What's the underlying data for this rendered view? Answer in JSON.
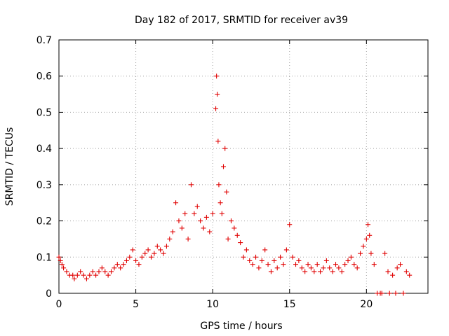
{
  "chart_data": {
    "type": "scatter",
    "title": "Day 182 of 2017, SRMTID for receiver av39",
    "xlabel": "GPS time / hours",
    "ylabel": "SRMTID / TECUs",
    "xlim": [
      0,
      24
    ],
    "ylim": [
      0,
      0.7
    ],
    "grid": true,
    "marker": "+",
    "marker_color": "#e00000",
    "x_ticks": [
      0,
      5,
      10,
      15,
      20
    ],
    "x_tick_labels": [
      "0",
      "5",
      "10",
      "15",
      "20"
    ],
    "y_ticks": [
      0,
      0.1,
      0.2,
      0.3,
      0.4,
      0.5,
      0.6,
      0.7
    ],
    "y_tick_labels": [
      "0",
      "0.1",
      "0.2",
      "0.3",
      "0.4",
      "0.5",
      "0.6",
      "0.7"
    ],
    "series": [
      {
        "name": "SRMTID",
        "x": [
          0.0,
          0.1,
          0.2,
          0.3,
          0.5,
          0.7,
          0.9,
          1.0,
          1.2,
          1.4,
          1.6,
          1.8,
          2.0,
          2.2,
          2.4,
          2.6,
          2.8,
          3.0,
          3.2,
          3.4,
          3.6,
          3.8,
          4.0,
          4.2,
          4.4,
          4.6,
          4.8,
          5.0,
          5.2,
          5.4,
          5.6,
          5.8,
          6.0,
          6.2,
          6.4,
          6.6,
          6.8,
          7.0,
          7.2,
          7.4,
          7.6,
          7.8,
          8.0,
          8.2,
          8.4,
          8.6,
          8.8,
          9.0,
          9.2,
          9.4,
          9.6,
          9.8,
          10.0,
          10.2,
          10.25,
          10.3,
          10.35,
          10.4,
          10.5,
          10.6,
          10.7,
          10.8,
          10.9,
          11.0,
          11.2,
          11.4,
          11.6,
          11.8,
          12.0,
          12.2,
          12.4,
          12.6,
          12.8,
          13.0,
          13.2,
          13.4,
          13.6,
          13.8,
          14.0,
          14.2,
          14.4,
          14.6,
          14.8,
          15.0,
          15.2,
          15.4,
          15.6,
          15.8,
          16.0,
          16.2,
          16.4,
          16.6,
          16.8,
          17.0,
          17.2,
          17.4,
          17.6,
          17.8,
          18.0,
          18.2,
          18.4,
          18.6,
          18.8,
          19.0,
          19.2,
          19.4,
          19.6,
          19.8,
          20.0,
          20.1,
          20.2,
          20.3,
          20.5,
          20.7,
          20.9,
          21.0,
          21.2,
          21.4,
          21.5,
          21.7,
          21.9,
          22.0,
          22.2,
          22.4,
          22.6,
          22.8
        ],
        "y": [
          0.1,
          0.09,
          0.08,
          0.07,
          0.06,
          0.05,
          0.05,
          0.04,
          0.05,
          0.06,
          0.05,
          0.04,
          0.05,
          0.06,
          0.05,
          0.06,
          0.07,
          0.06,
          0.05,
          0.06,
          0.07,
          0.08,
          0.07,
          0.08,
          0.09,
          0.1,
          0.12,
          0.09,
          0.08,
          0.1,
          0.11,
          0.12,
          0.1,
          0.11,
          0.13,
          0.12,
          0.11,
          0.13,
          0.15,
          0.17,
          0.25,
          0.2,
          0.18,
          0.22,
          0.15,
          0.3,
          0.22,
          0.24,
          0.2,
          0.18,
          0.21,
          0.17,
          0.22,
          0.51,
          0.6,
          0.55,
          0.42,
          0.3,
          0.25,
          0.22,
          0.35,
          0.4,
          0.28,
          0.15,
          0.2,
          0.18,
          0.16,
          0.14,
          0.1,
          0.12,
          0.09,
          0.08,
          0.1,
          0.07,
          0.09,
          0.12,
          0.08,
          0.06,
          0.09,
          0.07,
          0.1,
          0.08,
          0.12,
          0.19,
          0.1,
          0.08,
          0.09,
          0.07,
          0.06,
          0.08,
          0.07,
          0.06,
          0.08,
          0.06,
          0.07,
          0.09,
          0.07,
          0.06,
          0.08,
          0.07,
          0.06,
          0.08,
          0.09,
          0.1,
          0.08,
          0.07,
          0.11,
          0.13,
          0.15,
          0.19,
          0.16,
          0.11,
          0.08,
          0.0,
          0.0,
          0.0,
          0.11,
          0.06,
          0.0,
          0.05,
          0.0,
          0.07,
          0.08,
          0.0,
          0.06,
          0.05
        ]
      }
    ]
  }
}
